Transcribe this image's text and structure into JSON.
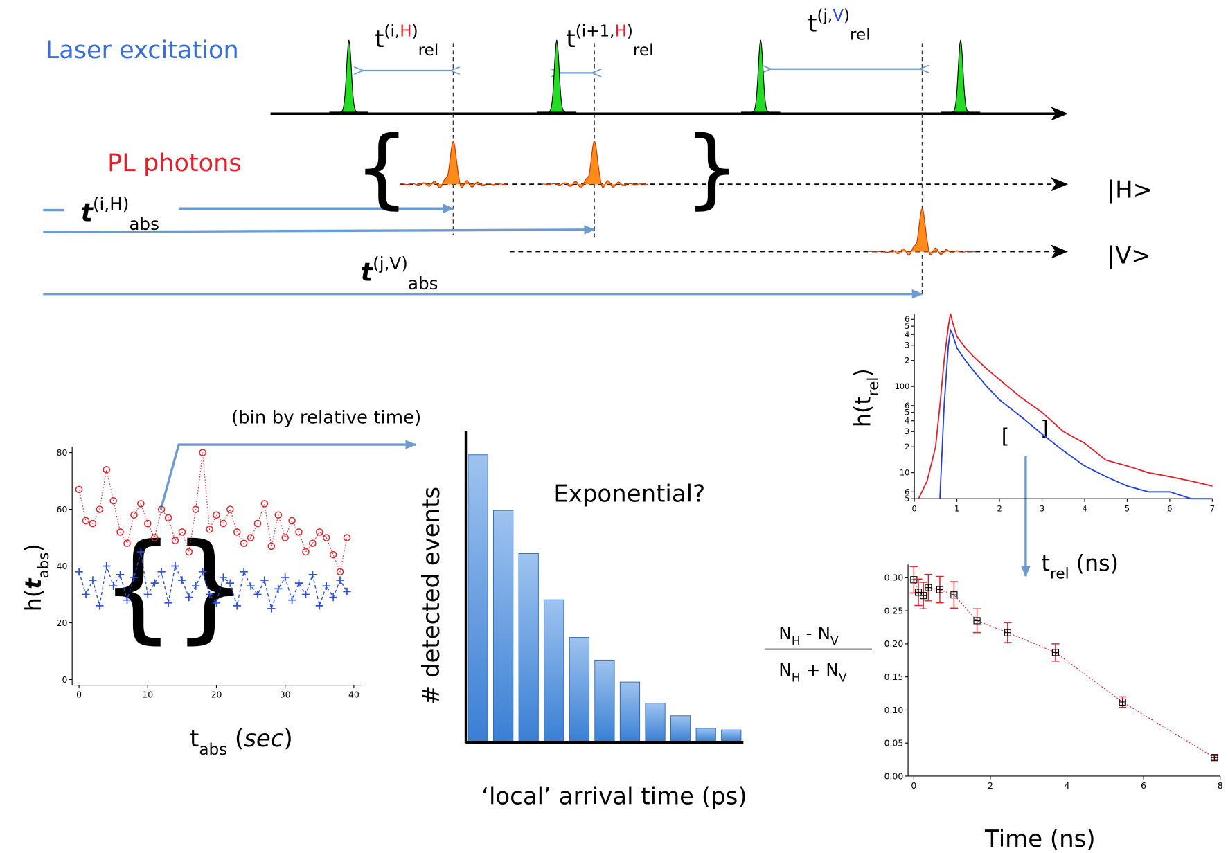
{
  "timeline": {
    "laser_label": "Laser excitation",
    "pl_label": "PL photons",
    "rel_labels": [
      {
        "base": "t",
        "sup_open": "(i,",
        "pol": "H",
        "sup_close": ")",
        "sub": "rel"
      },
      {
        "base": "t",
        "sup_open": "(i+1,",
        "pol": "H",
        "sup_close": ")",
        "sub": "rel"
      },
      {
        "base": "t",
        "sup_open": "(j,",
        "pol": "V",
        "sup_close": ")",
        "sub": "rel"
      }
    ],
    "abs_labels": [
      {
        "base": "t",
        "sup": "(i,H)",
        "sub": "abs"
      },
      {
        "base": "t",
        "sup": "(j,V)",
        "sub": "abs"
      }
    ],
    "states": [
      "|H>",
      "|V>"
    ]
  },
  "arrow_label": "(bin by relative time)",
  "chart_data": [
    {
      "type": "scatter",
      "ylabel": {
        "pre": "h(",
        "var": "t",
        "sub": "abs",
        "post": ")"
      },
      "xlabel": {
        "var": "t",
        "sub": "abs",
        "pre": " (",
        "unit": "sec",
        "post": ")"
      },
      "xlim": [
        -1,
        41
      ],
      "ylim": [
        -2,
        82
      ],
      "xticks": [
        0,
        10,
        20,
        30,
        40
      ],
      "yticks": [
        0,
        20,
        40,
        60,
        80
      ],
      "x": [
        0,
        1,
        2,
        3,
        4,
        5,
        6,
        7,
        8,
        9,
        10,
        11,
        12,
        13,
        14,
        15,
        16,
        17,
        18,
        19,
        20,
        21,
        22,
        23,
        24,
        25,
        26,
        27,
        28,
        29,
        30,
        31,
        32,
        33,
        34,
        35,
        36,
        37,
        38,
        39
      ],
      "series": [
        {
          "color": "#e0202a",
          "values": [
            67,
            56,
            55,
            60,
            74,
            63,
            52,
            48,
            58,
            62,
            55,
            50,
            60,
            57,
            49,
            52,
            45,
            60,
            80,
            53,
            58,
            55,
            60,
            52,
            48,
            50,
            55,
            62,
            47,
            58,
            50,
            56,
            52,
            45,
            48,
            52,
            50,
            44,
            38,
            50
          ]
        },
        {
          "color": "#2a4fd8",
          "values": [
            38,
            30,
            35,
            26,
            40,
            33,
            37,
            28,
            36,
            45,
            30,
            34,
            38,
            27,
            40,
            35,
            29,
            33,
            38,
            30,
            27,
            36,
            34,
            26,
            38,
            33,
            30,
            35,
            25,
            32,
            36,
            28,
            34,
            30,
            37,
            26,
            33,
            29,
            35,
            31
          ]
        }
      ]
    },
    {
      "type": "bar",
      "ylabel": "# detected events",
      "xlabel": "‘local’ arrival time (ps)",
      "annotation": "Exponential?",
      "color": "#4a8fdc",
      "values": [
        366,
        295,
        240,
        181,
        133,
        104,
        76,
        49,
        33,
        17,
        15
      ]
    },
    {
      "type": "line",
      "log_y": true,
      "ylabel": {
        "pre": "h(t",
        "sub": "rel",
        "post": ")"
      },
      "xlabel": {
        "pre": "t",
        "sub": "rel",
        "post": " (ns)"
      },
      "xlim": [
        0,
        7
      ],
      "ylim": [
        5,
        700
      ],
      "xticks": [
        0,
        1,
        2,
        3,
        4,
        5,
        6,
        7
      ],
      "yticks": [
        5,
        6,
        10,
        {
          "value": 20,
          "label": "2"
        },
        {
          "value": 30,
          "label": "3"
        },
        {
          "value": 40,
          "label": "4"
        },
        {
          "value": 50,
          "label": "5"
        },
        {
          "value": 60,
          "label": "6"
        },
        100,
        {
          "value": 200,
          "label": "2"
        },
        {
          "value": 300,
          "label": "3"
        },
        {
          "value": 400,
          "label": "4"
        },
        {
          "value": 500,
          "label": "5"
        },
        {
          "value": 600,
          "label": "6"
        }
      ],
      "x": [
        0.1,
        0.3,
        0.5,
        0.6,
        0.7,
        0.8,
        0.85,
        0.9,
        1.0,
        1.2,
        1.4,
        1.7,
        2.0,
        2.5,
        3.0,
        3.5,
        4.0,
        4.5,
        5.0,
        5.5,
        6.0,
        6.5,
        7.0
      ],
      "series": [
        {
          "color": "#e0202a",
          "values": [
            5,
            8,
            20,
            60,
            200,
            500,
            700,
            550,
            380,
            280,
            220,
            160,
            120,
            75,
            50,
            30,
            22,
            14,
            12,
            10,
            9,
            8,
            7
          ]
        },
        {
          "color": "#2040e0",
          "values": [
            null,
            null,
            null,
            5,
            60,
            300,
            450,
            400,
            280,
            200,
            150,
            100,
            70,
            45,
            28,
            18,
            12,
            9,
            7,
            6,
            6,
            5,
            5
          ]
        }
      ]
    },
    {
      "type": "errorbar",
      "ylabel": {
        "n1": "N",
        "s1": "H",
        "op": " - N",
        "s2": "V",
        "n2": "N",
        "s3": "H",
        "op2": " + N",
        "s4": "V"
      },
      "xlabel": "Time (ns)",
      "xlim": [
        -0.15,
        8
      ],
      "ylim": [
        0,
        0.32
      ],
      "xticks": [
        0,
        2,
        4,
        6,
        8
      ],
      "yticks": [
        {
          "value": 0,
          "label": "0.00"
        },
        0.05,
        {
          "value": 0.1,
          "label": "0.10"
        },
        0.15,
        {
          "value": 0.2,
          "label": "0.20"
        },
        0.25,
        {
          "value": 0.3,
          "label": "0.30"
        }
      ],
      "x": [
        0,
        0.12,
        0.25,
        0.38,
        0.68,
        1.05,
        1.65,
        2.45,
        3.7,
        5.45,
        7.85
      ],
      "values": [
        0.297,
        0.278,
        0.273,
        0.285,
        0.282,
        0.274,
        0.235,
        0.217,
        0.187,
        0.112,
        0.028
      ],
      "errors": [
        0.02,
        0.02,
        0.02,
        0.02,
        0.02,
        0.02,
        0.018,
        0.015,
        0.013,
        0.008,
        0.003
      ],
      "color": "#e0202a"
    }
  ]
}
